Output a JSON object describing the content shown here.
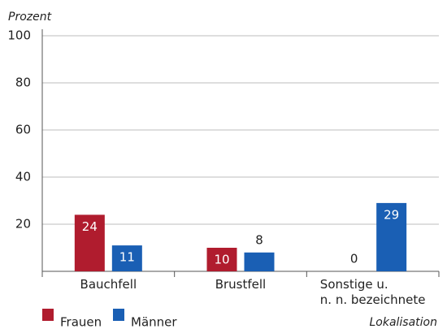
{
  "chart_data": {
    "type": "bar",
    "y_label": "Prozent",
    "x_label": "Lokalisation",
    "categories": [
      "Bauchfell",
      "Brustfell",
      "Sonstige u.\nn. n. bezeichnete"
    ],
    "series": [
      {
        "name": "Frauen",
        "color": "#b01c2e",
        "values": [
          24,
          10,
          0
        ]
      },
      {
        "name": "Männer",
        "color": "#1a5fb4",
        "values": [
          11,
          8,
          29
        ]
      }
    ],
    "ylim": [
      0,
      100
    ],
    "yticks": [
      20,
      40,
      60,
      80,
      100
    ],
    "grid": true
  }
}
